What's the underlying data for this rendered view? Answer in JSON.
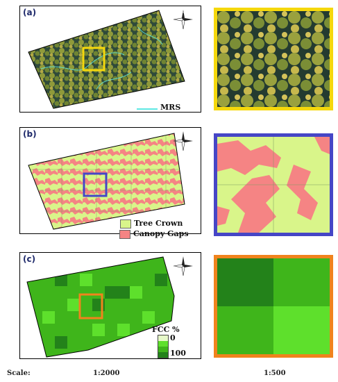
{
  "panels": {
    "a": {
      "label": "(a)",
      "legend": {
        "mrs_label": "MRS",
        "mrs_color": "#5de8e3"
      }
    },
    "b": {
      "label": "(b)",
      "legend": {
        "tree_crown_label": "Tree Crown",
        "tree_crown_color": "#d9f58a",
        "canopy_gaps_label": "Canopy Gaps",
        "canopy_gaps_color": "#f58484"
      }
    },
    "c": {
      "label": "(c)",
      "legend": {
        "title": "FCC %",
        "min_label": "0",
        "max_label": "100",
        "ramp_colors": [
          "#e6f9c8",
          "#5ee02c",
          "#3fb51b",
          "#23821a"
        ]
      }
    }
  },
  "highlight_colors": {
    "a": "#f5d80c",
    "b": "#4646c6",
    "c": "#f0831d"
  },
  "scale": {
    "label": "Scale:",
    "overview": "1:2000",
    "zoom": "1:500"
  }
}
